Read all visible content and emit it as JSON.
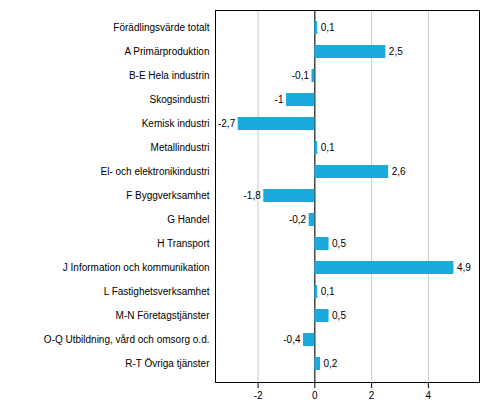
{
  "chart_data": {
    "type": "bar",
    "orientation": "horizontal",
    "categories": [
      "Förädlingsvärde totalt",
      "A Primärproduktion",
      "B-E Hela industrin",
      "Skogsindustri",
      "Kemisk industri",
      "Metallindustri",
      "El- och elektronikindustri",
      "F Byggverksamhet",
      "G Handel",
      "H Transport",
      "J Information och kommunikation",
      "L Fastighetsverksamhet",
      "M-N Företagstjänster",
      "O-Q Utbildning, vård och omsorg o.d.",
      "R-T Övriga tjänster"
    ],
    "values": [
      0.1,
      2.5,
      -0.1,
      -1.0,
      -2.7,
      0.1,
      2.6,
      -1.8,
      -0.2,
      0.5,
      4.9,
      0.1,
      0.5,
      -0.4,
      0.2
    ],
    "value_labels": [
      "0,1",
      "2,5",
      "-0,1",
      "-1",
      "-2,7",
      "0,1",
      "2,6",
      "-1,8",
      "-0,2",
      "0,5",
      "4,9",
      "0,1",
      "0,5",
      "-0,4",
      "0,2"
    ],
    "color": "#1aabdc",
    "xlim": [
      -3.5,
      5.8
    ],
    "xticks": [
      -2,
      0,
      2,
      4
    ],
    "grid": true,
    "data_labels": true
  }
}
